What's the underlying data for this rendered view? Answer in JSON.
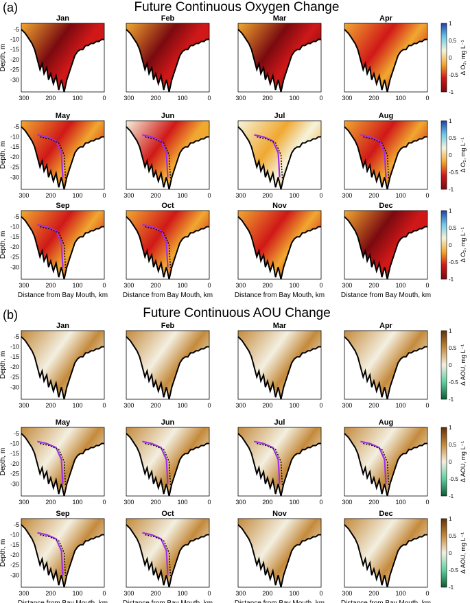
{
  "figure": {
    "panel_a": {
      "label": "(a)",
      "title": "Future Continuous Oxygen Change",
      "colorbar": {
        "label": "Δ O₂, mg L⁻¹",
        "ticks": [
          "1",
          "0.5",
          "0",
          "-0.5",
          "-1"
        ],
        "colors": [
          "#1f3fa8",
          "#6fc8e8",
          "#f5f3dc",
          "#f0a830",
          "#d01818",
          "#7a0a10"
        ]
      }
    },
    "panel_b": {
      "label": "(b)",
      "title": "Future Continuous AOU Change",
      "colorbar": {
        "label": "Δ AOU, mg L⁻¹",
        "ticks": [
          "1",
          "0.5",
          "0",
          "-0.5",
          "-1"
        ],
        "colors": [
          "#603008",
          "#c48a3c",
          "#f3efe0",
          "#5fcfa0",
          "#0b5a2e"
        ]
      }
    },
    "months": [
      "Jan",
      "Feb",
      "Mar",
      "Apr",
      "May",
      "Jun",
      "Jul",
      "Aug",
      "Sep",
      "Oct",
      "Nov",
      "Dec"
    ],
    "ylabel": "Depth, m",
    "xlabel": "Distance from Bay Mouth, km",
    "y_ticks": [
      "-5",
      "-10",
      "-15",
      "-20",
      "-25",
      "-30"
    ],
    "x_ticks": [
      "300",
      "200",
      "100",
      "0"
    ]
  },
  "chart_data": {
    "type": "heatmap",
    "x_range_km": [
      310,
      0
    ],
    "depth_range_m": [
      -2,
      -36
    ],
    "bathymetry_km_depth": [
      [
        310,
        -5
      ],
      [
        295,
        -7
      ],
      [
        285,
        -9
      ],
      [
        270,
        -12
      ],
      [
        260,
        -15
      ],
      [
        250,
        -20
      ],
      [
        240,
        -25
      ],
      [
        232,
        -22
      ],
      [
        225,
        -27
      ],
      [
        215,
        -24
      ],
      [
        208,
        -30
      ],
      [
        200,
        -27
      ],
      [
        190,
        -32
      ],
      [
        180,
        -28
      ],
      [
        170,
        -35
      ],
      [
        160,
        -30
      ],
      [
        150,
        -36
      ],
      [
        140,
        -30
      ],
      [
        130,
        -26
      ],
      [
        120,
        -22
      ],
      [
        110,
        -18
      ],
      [
        100,
        -16
      ],
      [
        90,
        -15
      ],
      [
        80,
        -15
      ],
      [
        70,
        -13
      ],
      [
        60,
        -13
      ],
      [
        50,
        -12
      ],
      [
        40,
        -12
      ],
      [
        30,
        -11
      ],
      [
        20,
        -11
      ],
      [
        10,
        -10
      ],
      [
        0,
        -10
      ]
    ],
    "oxygen_change_intensity": {
      "Jan": -0.65,
      "Feb": -0.6,
      "Mar": -0.8,
      "Apr": -0.45,
      "May": -0.4,
      "Jun": -0.2,
      "Jul": -0.15,
      "Aug": -0.5,
      "Sep": -0.55,
      "Oct": -0.5,
      "Nov": -0.55,
      "Dec": -0.6
    },
    "aou_change_intensity": {
      "Jan": 0.05,
      "Feb": 0.15,
      "Mar": 0.35,
      "Apr": 0.3,
      "May": 0.2,
      "Jun": 0.1,
      "Jul": 0.15,
      "Aug": 0.45,
      "Sep": 0.4,
      "Oct": 0.3,
      "Nov": 0.15,
      "Dec": 0.25
    },
    "hypoxic_contour_months": [
      "May",
      "Jun",
      "Jul",
      "Aug",
      "Sep",
      "Oct"
    ]
  }
}
